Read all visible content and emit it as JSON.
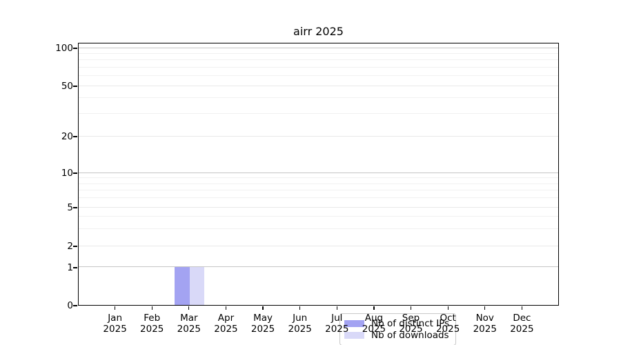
{
  "chart_data": {
    "type": "bar",
    "title": "airr 2025",
    "categories": [
      "Jan",
      "Feb",
      "Mar",
      "Apr",
      "May",
      "Jun",
      "Jul",
      "Aug",
      "Sep",
      "Oct",
      "Nov",
      "Dec"
    ],
    "year_label": "2025",
    "series": [
      {
        "name": "Nb of distinct IPs",
        "color": "#a3a3f2",
        "values": [
          0,
          0,
          1,
          0,
          0,
          0,
          0,
          0,
          0,
          0,
          0,
          0
        ]
      },
      {
        "name": "Nb of downloads",
        "color": "#d9d9f8",
        "values": [
          0,
          0,
          1,
          0,
          0,
          0,
          0,
          0,
          0,
          0,
          0,
          0
        ]
      }
    ],
    "y_ticks": [
      0,
      1,
      2,
      5,
      10,
      20,
      50,
      100
    ],
    "y_minor_ticks": [
      3,
      4,
      6,
      7,
      8,
      9,
      30,
      40,
      60,
      70,
      80,
      90
    ],
    "yscale": "log-like with zero baseline",
    "ylim": [
      0,
      111
    ],
    "xlabel": "",
    "ylabel": "",
    "grid": true,
    "legend_position": "inside lower center",
    "colors": {
      "grid_major_decade": "#c5c5c5",
      "grid_major_other": "#e8e8e8",
      "grid_minor": "#f1f1f1",
      "axis": "#000000",
      "background": "#ffffff"
    }
  }
}
